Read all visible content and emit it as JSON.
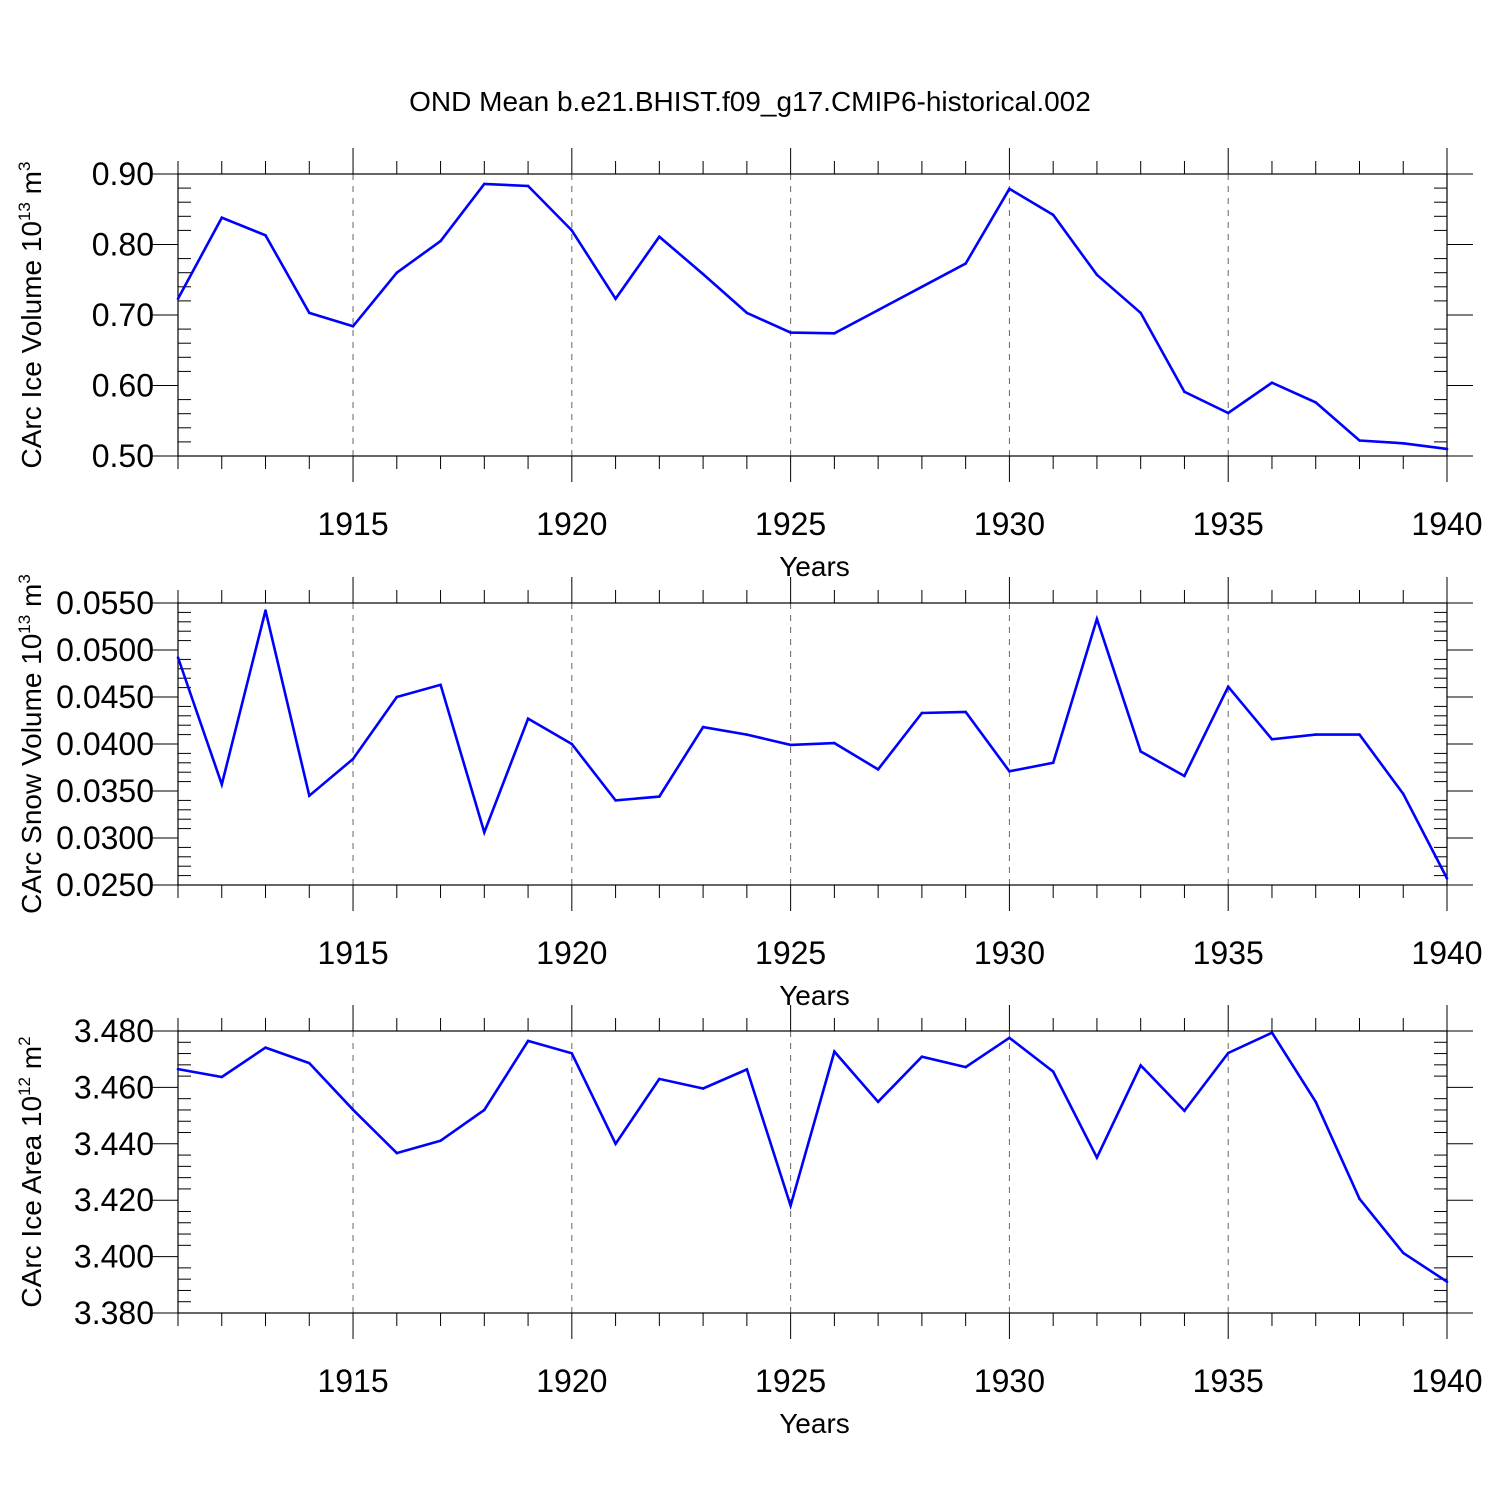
{
  "title": "OND Mean b.e21.BHIST.f09_g17.CMIP6-historical.002",
  "colors": {
    "line": "#0000ff",
    "axis": "#000000",
    "grid": "#666666"
  },
  "chart_data": [
    {
      "type": "line",
      "ylabel_main": "CArc Ice Volume 10",
      "ylabel_exp": "13",
      "ylabel_unit": "m",
      "ylabel_unit_exp": "3",
      "xlabel": "Years",
      "xlim": [
        1911,
        1940
      ],
      "ylim": [
        0.5,
        0.9
      ],
      "xticks": [
        1915,
        1920,
        1925,
        1930,
        1935,
        1940
      ],
      "yticks": [
        "0.50",
        "0.60",
        "0.70",
        "0.80",
        "0.90"
      ],
      "ytick_values": [
        0.5,
        0.6,
        0.7,
        0.8,
        0.9
      ],
      "grid": "vertical dashed at major x ticks",
      "x": [
        1911,
        1912,
        1913,
        1914,
        1915,
        1916,
        1917,
        1918,
        1919,
        1920,
        1921,
        1922,
        1923,
        1924,
        1925,
        1926,
        1927,
        1928,
        1929,
        1930,
        1931,
        1932,
        1933,
        1934,
        1935,
        1936,
        1937,
        1938,
        1939,
        1940
      ],
      "series": [
        {
          "values": [
            0.723,
            0.838,
            0.813,
            0.703,
            0.684,
            0.76,
            0.805,
            0.886,
            0.883,
            0.82,
            0.723,
            0.811,
            0.758,
            0.703,
            0.675,
            0.674,
            0.707,
            0.74,
            0.773,
            0.879,
            0.842,
            0.757,
            0.703,
            0.591,
            0.561,
            0.604,
            0.576,
            0.522,
            0.518,
            0.51
          ]
        }
      ]
    },
    {
      "type": "line",
      "ylabel_main": "CArc Snow Volume 10",
      "ylabel_exp": "13",
      "ylabel_unit": "m",
      "ylabel_unit_exp": "3",
      "xlabel": "Years",
      "xlim": [
        1911,
        1940
      ],
      "ylim": [
        0.025,
        0.055
      ],
      "xticks": [
        1915,
        1920,
        1925,
        1930,
        1935,
        1940
      ],
      "yticks": [
        "0.0250",
        "0.0300",
        "0.0350",
        "0.0400",
        "0.0450",
        "0.0500",
        "0.0550"
      ],
      "ytick_values": [
        0.025,
        0.03,
        0.035,
        0.04,
        0.045,
        0.05,
        0.055
      ],
      "grid": "vertical dashed at major x ticks",
      "x": [
        1911,
        1912,
        1913,
        1914,
        1915,
        1916,
        1917,
        1918,
        1919,
        1920,
        1921,
        1922,
        1923,
        1924,
        1925,
        1926,
        1927,
        1928,
        1929,
        1930,
        1931,
        1932,
        1933,
        1934,
        1935,
        1936,
        1937,
        1938,
        1939,
        1940
      ],
      "series": [
        {
          "values": [
            0.0492,
            0.0357,
            0.0542,
            0.0345,
            0.0384,
            0.045,
            0.0463,
            0.0306,
            0.0427,
            0.04,
            0.034,
            0.0344,
            0.0418,
            0.041,
            0.0399,
            0.0401,
            0.0373,
            0.0433,
            0.0434,
            0.0371,
            0.038,
            0.0533,
            0.0392,
            0.0366,
            0.0461,
            0.0405,
            0.041,
            0.041,
            0.0347,
            0.0257
          ]
        }
      ]
    },
    {
      "type": "line",
      "ylabel_main": "CArc Ice Area 10",
      "ylabel_exp": "12",
      "ylabel_unit": "m",
      "ylabel_unit_exp": "2",
      "xlabel": "Years",
      "xlim": [
        1911,
        1940
      ],
      "ylim": [
        3.38,
        3.48
      ],
      "xticks": [
        1915,
        1920,
        1925,
        1930,
        1935,
        1940
      ],
      "yticks": [
        "3.380",
        "3.400",
        "3.420",
        "3.440",
        "3.460",
        "3.480"
      ],
      "ytick_values": [
        3.38,
        3.4,
        3.42,
        3.44,
        3.46,
        3.48
      ],
      "grid": "vertical dashed at major x ticks",
      "x": [
        1911,
        1912,
        1913,
        1914,
        1915,
        1916,
        1917,
        1918,
        1919,
        1920,
        1921,
        1922,
        1923,
        1924,
        1925,
        1926,
        1927,
        1928,
        1929,
        1930,
        1931,
        1932,
        1933,
        1934,
        1935,
        1936,
        1937,
        1938,
        1939,
        1940
      ],
      "series": [
        {
          "values": [
            3.4665,
            3.4637,
            3.4741,
            3.4686,
            3.4521,
            3.4367,
            3.4411,
            3.452,
            3.4765,
            3.4721,
            3.44,
            3.463,
            3.4596,
            3.4664,
            3.4181,
            3.4727,
            3.4549,
            3.4709,
            3.4672,
            3.4776,
            3.4656,
            3.4351,
            3.4678,
            3.4517,
            3.4722,
            3.4794,
            3.4549,
            3.4205,
            3.4013,
            3.3911
          ]
        }
      ]
    }
  ]
}
